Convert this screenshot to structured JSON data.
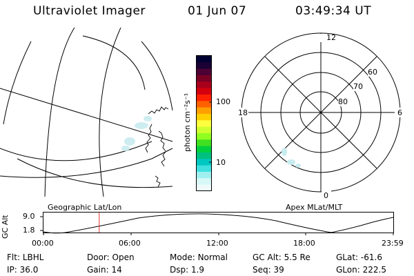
{
  "header": {
    "instrument": "Ultraviolet Imager",
    "date": "01 Jun 07",
    "time": "03:49:34 UT"
  },
  "colorbar": {
    "unit_label": "photon cm⁻²s⁻¹",
    "ticks": [
      "100",
      "10"
    ],
    "colors": [
      "#000033",
      "#1a0033",
      "#4d0033",
      "#7a0026",
      "#a8001a",
      "#d4000d",
      "#ff2000",
      "#ff6000",
      "#ffa000",
      "#ffd000",
      "#ffff40",
      "#d0ff30",
      "#90ff20",
      "#40e020",
      "#00d040",
      "#00c080",
      "#00c8c0",
      "#40e0e0",
      "#a0f0f0",
      "#d8f8f8",
      "#f0fafa"
    ]
  },
  "left_map": {
    "label": "Geographic Lat/Lon"
  },
  "polar_plot": {
    "label": "Apex MLat/MLT",
    "mlt_labels": {
      "top": "12",
      "left": "18",
      "right": "6",
      "bottom": "0"
    },
    "lat_labels": [
      "60",
      "70",
      "80"
    ]
  },
  "altitude_plot": {
    "ylabel": "GC Alt",
    "yticks": [
      "9.0",
      "1.8"
    ],
    "xticks": [
      "00:00",
      "06:00",
      "12:00",
      "18:00",
      "23:59"
    ],
    "marker_time": "03:49:34",
    "marker_color": "#e03030"
  },
  "footer": {
    "row1": [
      {
        "label": "Flt:",
        "value": "LBHL"
      },
      {
        "label": "Door:",
        "value": "Open"
      },
      {
        "label": "Mode:",
        "value": "Normal"
      },
      {
        "label": "GC Alt:",
        "value": "5.5 Re"
      },
      {
        "label": "GLat:",
        "value": "-61.6"
      }
    ],
    "row2": [
      {
        "label": "IP:",
        "value": "36.0"
      },
      {
        "label": "Gain:",
        "value": "14"
      },
      {
        "label": "Dsp:",
        "value": "1.9"
      },
      {
        "label": "Seq:",
        "value": "39"
      },
      {
        "label": "GLon:",
        "value": "222.5"
      }
    ]
  }
}
